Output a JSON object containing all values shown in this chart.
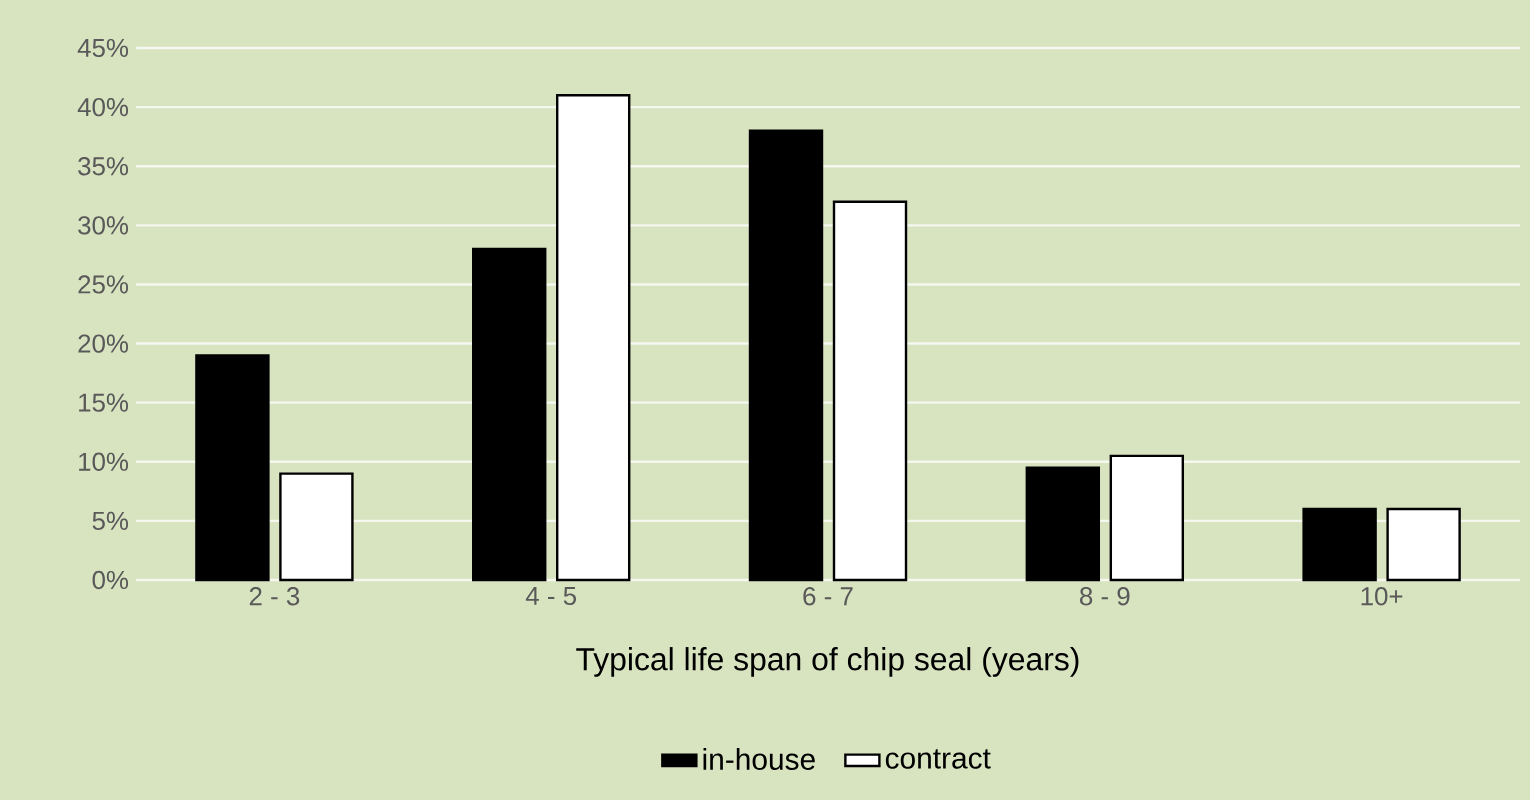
{
  "chart_data": {
    "type": "bar",
    "xlabel": "Typical life span of chip seal (years)",
    "categories": [
      "2 - 3",
      "4 - 5",
      "6 - 7",
      "8 - 9",
      "10+"
    ],
    "series": [
      {
        "name": "in-house",
        "color": "#000000",
        "values": [
          19,
          28,
          38,
          9.5,
          6
        ]
      },
      {
        "name": "contract",
        "color": "#ffffff",
        "values": [
          9,
          41,
          32,
          10.5,
          6
        ]
      }
    ],
    "ylim": [
      0,
      45
    ],
    "yticks": [
      {
        "value": 0,
        "label": "0%"
      },
      {
        "value": 5,
        "label": "5%"
      },
      {
        "value": 10,
        "label": "10%"
      },
      {
        "value": 15,
        "label": "15%"
      },
      {
        "value": 20,
        "label": "20%"
      },
      {
        "value": 25,
        "label": "25%"
      },
      {
        "value": 30,
        "label": "30%"
      },
      {
        "value": 35,
        "label": "35%"
      },
      {
        "value": 40,
        "label": "40%"
      },
      {
        "value": 45,
        "label": "45%"
      }
    ],
    "grid": "y",
    "legend": "bottom"
  }
}
